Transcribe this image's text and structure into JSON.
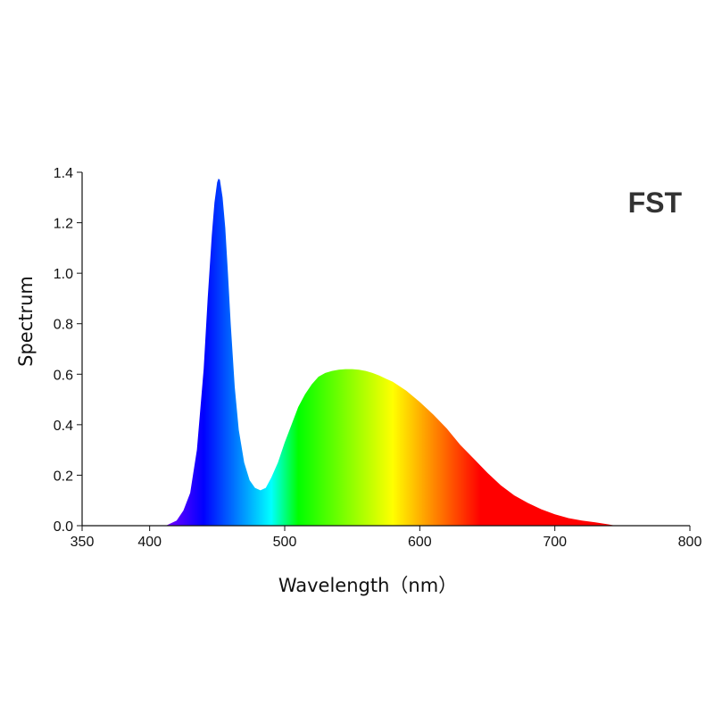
{
  "chart_data": {
    "type": "area",
    "title": "",
    "annotation": "FST",
    "xlabel": "Wavelength（nm）",
    "ylabel": "Spectrum",
    "xlim": [
      350,
      800
    ],
    "ylim": [
      0,
      1.4
    ],
    "x_ticks": [
      "350",
      "400",
      "500",
      "600",
      "700",
      "800"
    ],
    "y_ticks": [
      "0.0",
      "0.2",
      "0.4",
      "0.6",
      "0.8",
      "1.0",
      "1.2",
      "1.4"
    ],
    "grid": false,
    "fill": "visible-spectrum gradient by wavelength",
    "series": [
      {
        "x": [
          412,
          420,
          425,
          430,
          435,
          440,
          443,
          446,
          448,
          450,
          451,
          452,
          454,
          456,
          458,
          460,
          463,
          466,
          470,
          474,
          478,
          482,
          486,
          490,
          495,
          500,
          505,
          510,
          515,
          520,
          525,
          530,
          535,
          540,
          545,
          550,
          555,
          560,
          565,
          570,
          575,
          580,
          590,
          600,
          610,
          620,
          630,
          640,
          650,
          660,
          670,
          680,
          690,
          700,
          710,
          720,
          730,
          740,
          745
        ],
        "y": [
          0.0,
          0.02,
          0.06,
          0.13,
          0.3,
          0.62,
          0.9,
          1.15,
          1.28,
          1.36,
          1.375,
          1.37,
          1.3,
          1.18,
          1.0,
          0.8,
          0.55,
          0.38,
          0.25,
          0.18,
          0.15,
          0.14,
          0.15,
          0.19,
          0.25,
          0.33,
          0.4,
          0.47,
          0.52,
          0.56,
          0.59,
          0.605,
          0.613,
          0.618,
          0.62,
          0.62,
          0.618,
          0.613,
          0.605,
          0.595,
          0.582,
          0.57,
          0.535,
          0.49,
          0.44,
          0.385,
          0.32,
          0.265,
          0.21,
          0.16,
          0.12,
          0.09,
          0.065,
          0.045,
          0.03,
          0.02,
          0.013,
          0.005,
          0.0
        ]
      }
    ]
  }
}
